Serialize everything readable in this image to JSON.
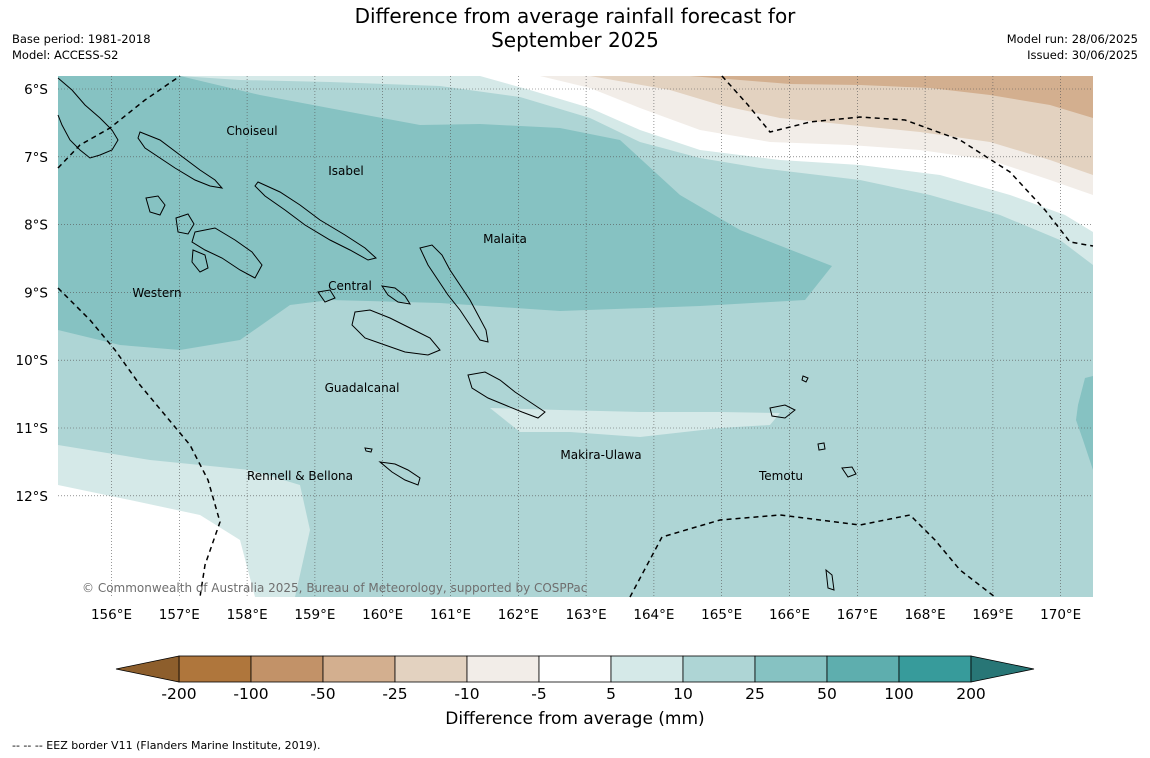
{
  "title": {
    "line1": "Difference from average rainfall forecast for",
    "line2": "September 2025"
  },
  "meta": {
    "base_period": "Base period: 1981-2018",
    "model": "Model: ACCESS-S2",
    "model_run": "Model run: 28/06/2025",
    "issued": "Issued: 30/06/2025"
  },
  "map": {
    "lat_labels": [
      "6°S",
      "7°S",
      "8°S",
      "9°S",
      "10°S",
      "11°S",
      "12°S"
    ],
    "lon_labels": [
      "156°E",
      "157°E",
      "158°E",
      "159°E",
      "160°E",
      "161°E",
      "162°E",
      "163°E",
      "164°E",
      "165°E",
      "166°E",
      "167°E",
      "168°E",
      "169°E",
      "170°E"
    ],
    "provinces": [
      "Choiseul",
      "Isabel",
      "Malaita",
      "Western",
      "Central",
      "Guadalcanal",
      "Makira-Ulawa",
      "Rennell & Bellona",
      "Temotu"
    ],
    "copyright": "© Commonwealth of Australia 2025, Bureau of Meteorology, supported by COSPPac",
    "colors": {
      "c_10_25": "#aed5d5",
      "c_5_10": "#d5e9e8",
      "c_25_50": "#86c2c2",
      "c_minus5_5": "#ffffff",
      "c_minus10_minus5": "#f2ede8",
      "c_minus25_minus10": "#e3d2c0",
      "c_minus50_minus25": "#d3af8f"
    }
  },
  "colorbar": {
    "tick_labels": [
      "-200",
      "-100",
      "-50",
      "-25",
      "-10",
      "-5",
      "5",
      "10",
      "25",
      "50",
      "100",
      "200"
    ],
    "bin_colors": [
      "#af763c",
      "#c29268",
      "#d3af8f",
      "#e3d2c0",
      "#f2ede8",
      "#ffffff",
      "#d5e9e8",
      "#aed5d5",
      "#86c2c2",
      "#5eaeae",
      "#379b9b"
    ],
    "low_extend_color": "#8d5e2c",
    "high_extend_color": "#287676",
    "title": "Difference from average (mm)"
  },
  "legend": {
    "eez_note": "--  --  -- EEZ border V11 (Flanders Marine Institute, 2019)."
  }
}
